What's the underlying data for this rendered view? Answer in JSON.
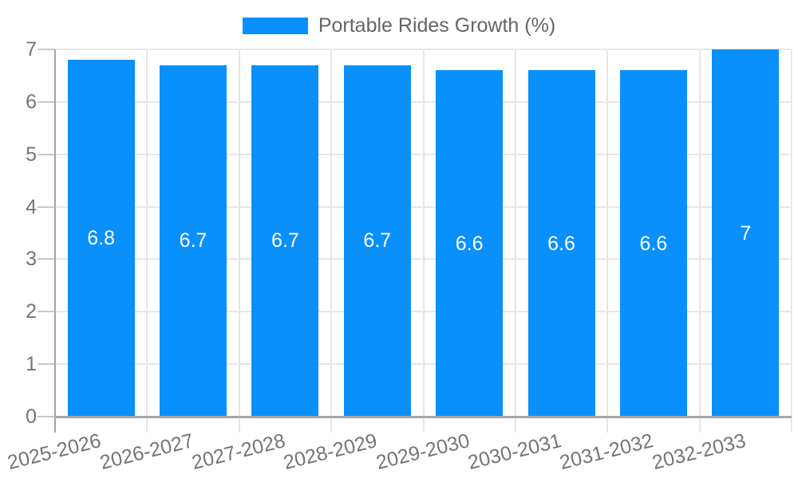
{
  "chart_data": {
    "type": "bar",
    "legend": "Portable Rides Growth (%)",
    "legend_position": "top-center",
    "categories": [
      "2025-2026",
      "2026-2027",
      "2027-2028",
      "2028-2029",
      "2029-2030",
      "2030-2031",
      "2031-2032",
      "2032-2033"
    ],
    "series": [
      {
        "name": "Portable Rides Growth (%)",
        "values": [
          6.8,
          6.7,
          6.7,
          6.7,
          6.6,
          6.6,
          6.6,
          7
        ],
        "value_labels": [
          "6.8",
          "6.7",
          "6.7",
          "6.7",
          "6.6",
          "6.6",
          "6.6",
          "7"
        ]
      }
    ],
    "ylim": [
      0,
      7
    ],
    "yticks": [
      "0",
      "1",
      "2",
      "3",
      "4",
      "5",
      "6",
      "7"
    ],
    "grid": true,
    "colors": {
      "bar": "#0990fa",
      "bar_label_text": "#ffffff",
      "axis_text": "#757575",
      "legend_text": "#666666",
      "gridline": "#e6e6e6",
      "axis_line": "#a6a6a6",
      "tick_line": "#c8c8c8"
    }
  }
}
